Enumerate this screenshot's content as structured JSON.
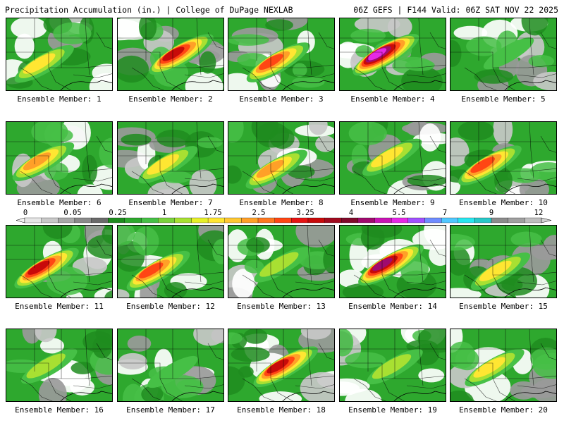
{
  "header": {
    "title_left": "Precipitation Accumulation (in.) | College of DuPage NEXLAB",
    "title_right": "06Z GEFS | F144 Valid: 06Z SAT NOV 22 2025"
  },
  "colorbar": {
    "tick_labels": [
      "0",
      "0.05",
      "0.25",
      "1",
      "1.75",
      "2.5",
      "3.25",
      "4",
      "5.5",
      "7",
      "9",
      "12"
    ],
    "colors": [
      "#e6e6e6",
      "#c8c8c8",
      "#a8a8a8",
      "#8a8a8a",
      "#6a6a6a",
      "#1e8c1e",
      "#2ea82e",
      "#46c046",
      "#7ad23c",
      "#a8e032",
      "#e6f028",
      "#ffe632",
      "#ffc832",
      "#ffa028",
      "#ff7820",
      "#ff4614",
      "#e61414",
      "#c80a0a",
      "#a00a1e",
      "#800a2a",
      "#a00a6e",
      "#c814b4",
      "#e628e6",
      "#a050ff",
      "#6e8cff",
      "#50c8ff",
      "#28e6f0",
      "#28c8c8",
      "#8c8c8c",
      "#a0a0a0",
      "#bebebe"
    ]
  },
  "members": [
    {
      "label": "Ensemble Member: 1",
      "intensity": 0.35
    },
    {
      "label": "Ensemble Member: 2",
      "intensity": 0.65
    },
    {
      "label": "Ensemble Member: 3",
      "intensity": 0.55
    },
    {
      "label": "Ensemble Member: 4",
      "intensity": 0.85
    },
    {
      "label": "Ensemble Member: 5",
      "intensity": 0.1
    },
    {
      "label": "Ensemble Member: 6",
      "intensity": 0.45
    },
    {
      "label": "Ensemble Member: 7",
      "intensity": 0.4
    },
    {
      "label": "Ensemble Member: 8",
      "intensity": 0.45
    },
    {
      "label": "Ensemble Member: 9",
      "intensity": 0.35
    },
    {
      "label": "Ensemble Member: 10",
      "intensity": 0.55
    },
    {
      "label": "Ensemble Member: 11",
      "intensity": 0.65
    },
    {
      "label": "Ensemble Member: 12",
      "intensity": 0.6
    },
    {
      "label": "Ensemble Member: 13",
      "intensity": 0.3
    },
    {
      "label": "Ensemble Member: 14",
      "intensity": 0.8
    },
    {
      "label": "Ensemble Member: 15",
      "intensity": 0.4
    },
    {
      "label": "Ensemble Member: 16",
      "intensity": 0.3
    },
    {
      "label": "Ensemble Member: 17",
      "intensity": 0.2
    },
    {
      "label": "Ensemble Member: 18",
      "intensity": 0.7
    },
    {
      "label": "Ensemble Member: 19",
      "intensity": 0.3
    },
    {
      "label": "Ensemble Member: 20",
      "intensity": 0.4
    }
  ]
}
